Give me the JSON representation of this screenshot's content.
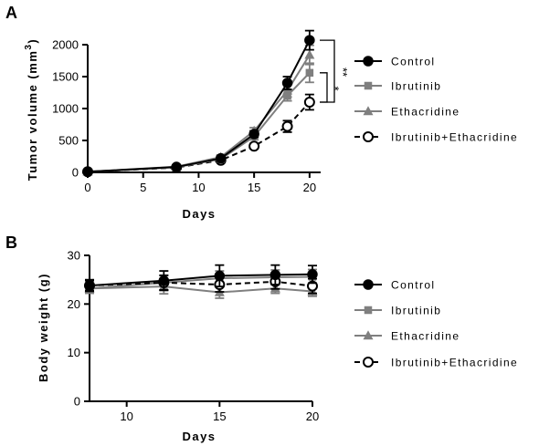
{
  "panels": [
    {
      "label": "A",
      "ylabel_main": "Tumor volume (mm",
      "ylabel_sup": "3",
      "ylabel_close": ")",
      "xlabel": "Days",
      "significance": [
        {
          "text": "**"
        },
        {
          "text": "*"
        }
      ]
    },
    {
      "label": "B",
      "ylabel": "Body weight (g)",
      "xlabel": "Days"
    }
  ],
  "legend": [
    {
      "name": "Control",
      "marker": "circle-filled",
      "color": "#000000",
      "dashed": false
    },
    {
      "name": "Ibrutinib",
      "marker": "square",
      "color": "#7f7f7f",
      "dashed": false
    },
    {
      "name": "Ethacridine",
      "marker": "triangle",
      "color": "#7f7f7f",
      "dashed": false
    },
    {
      "name": "Ibrutinib+Ethacridine",
      "marker": "circle-open",
      "color": "#000000",
      "dashed": true
    }
  ],
  "chart_data": [
    {
      "type": "line",
      "xlabel": "Days",
      "ylabel": "Tumor volume (mm 3)",
      "xlim": [
        0,
        21
      ],
      "ylim": [
        0,
        2200
      ],
      "xticks": [
        0,
        5,
        10,
        15,
        20
      ],
      "yticks": [
        0,
        500,
        1000,
        1500,
        2000
      ],
      "x": [
        0,
        8,
        12,
        15,
        18,
        20
      ],
      "series": [
        {
          "name": "Control",
          "values": [
            10,
            85,
            220,
            600,
            1400,
            2070
          ],
          "errors": [
            10,
            20,
            30,
            50,
            100,
            150
          ]
        },
        {
          "name": "Ibrutinib",
          "values": [
            10,
            80,
            210,
            560,
            1200,
            1560
          ],
          "errors": [
            10,
            20,
            30,
            50,
            80,
            150
          ]
        },
        {
          "name": "Ethacridine",
          "values": [
            10,
            90,
            240,
            650,
            1280,
            1840
          ],
          "errors": [
            10,
            20,
            30,
            50,
            100,
            150
          ]
        },
        {
          "name": "Ibrutinib+Ethacridine",
          "values": [
            10,
            75,
            190,
            410,
            720,
            1100
          ],
          "errors": [
            10,
            15,
            20,
            40,
            90,
            120
          ]
        }
      ],
      "grid": false,
      "legend_position": "right"
    },
    {
      "type": "line",
      "xlabel": "Days",
      "ylabel": "Body weight (g)",
      "xlim": [
        8,
        20
      ],
      "ylim": [
        0,
        30
      ],
      "xticks": [
        10,
        15,
        20
      ],
      "yticks": [
        0,
        10,
        20,
        30
      ],
      "x": [
        8,
        12,
        15,
        18,
        20
      ],
      "series": [
        {
          "name": "Control",
          "values": [
            23.8,
            24.8,
            25.8,
            26.0,
            26.1
          ],
          "errors": [
            1.2,
            2.0,
            2.2,
            2.0,
            1.8
          ]
        },
        {
          "name": "Ibrutinib",
          "values": [
            23.2,
            24.4,
            25.3,
            25.5,
            25.6
          ],
          "errors": [
            1.0,
            1.5,
            1.5,
            1.5,
            1.5
          ]
        },
        {
          "name": "Ethacridine",
          "values": [
            23.2,
            23.6,
            22.4,
            23.2,
            22.6
          ],
          "errors": [
            1.0,
            1.5,
            1.2,
            1.0,
            1.0
          ]
        },
        {
          "name": "Ibrutinib+Ethacridine",
          "values": [
            23.8,
            24.4,
            24.0,
            24.6,
            23.7
          ],
          "errors": [
            1.0,
            1.5,
            1.5,
            1.5,
            1.5
          ]
        }
      ],
      "grid": false,
      "legend_position": "right"
    }
  ]
}
